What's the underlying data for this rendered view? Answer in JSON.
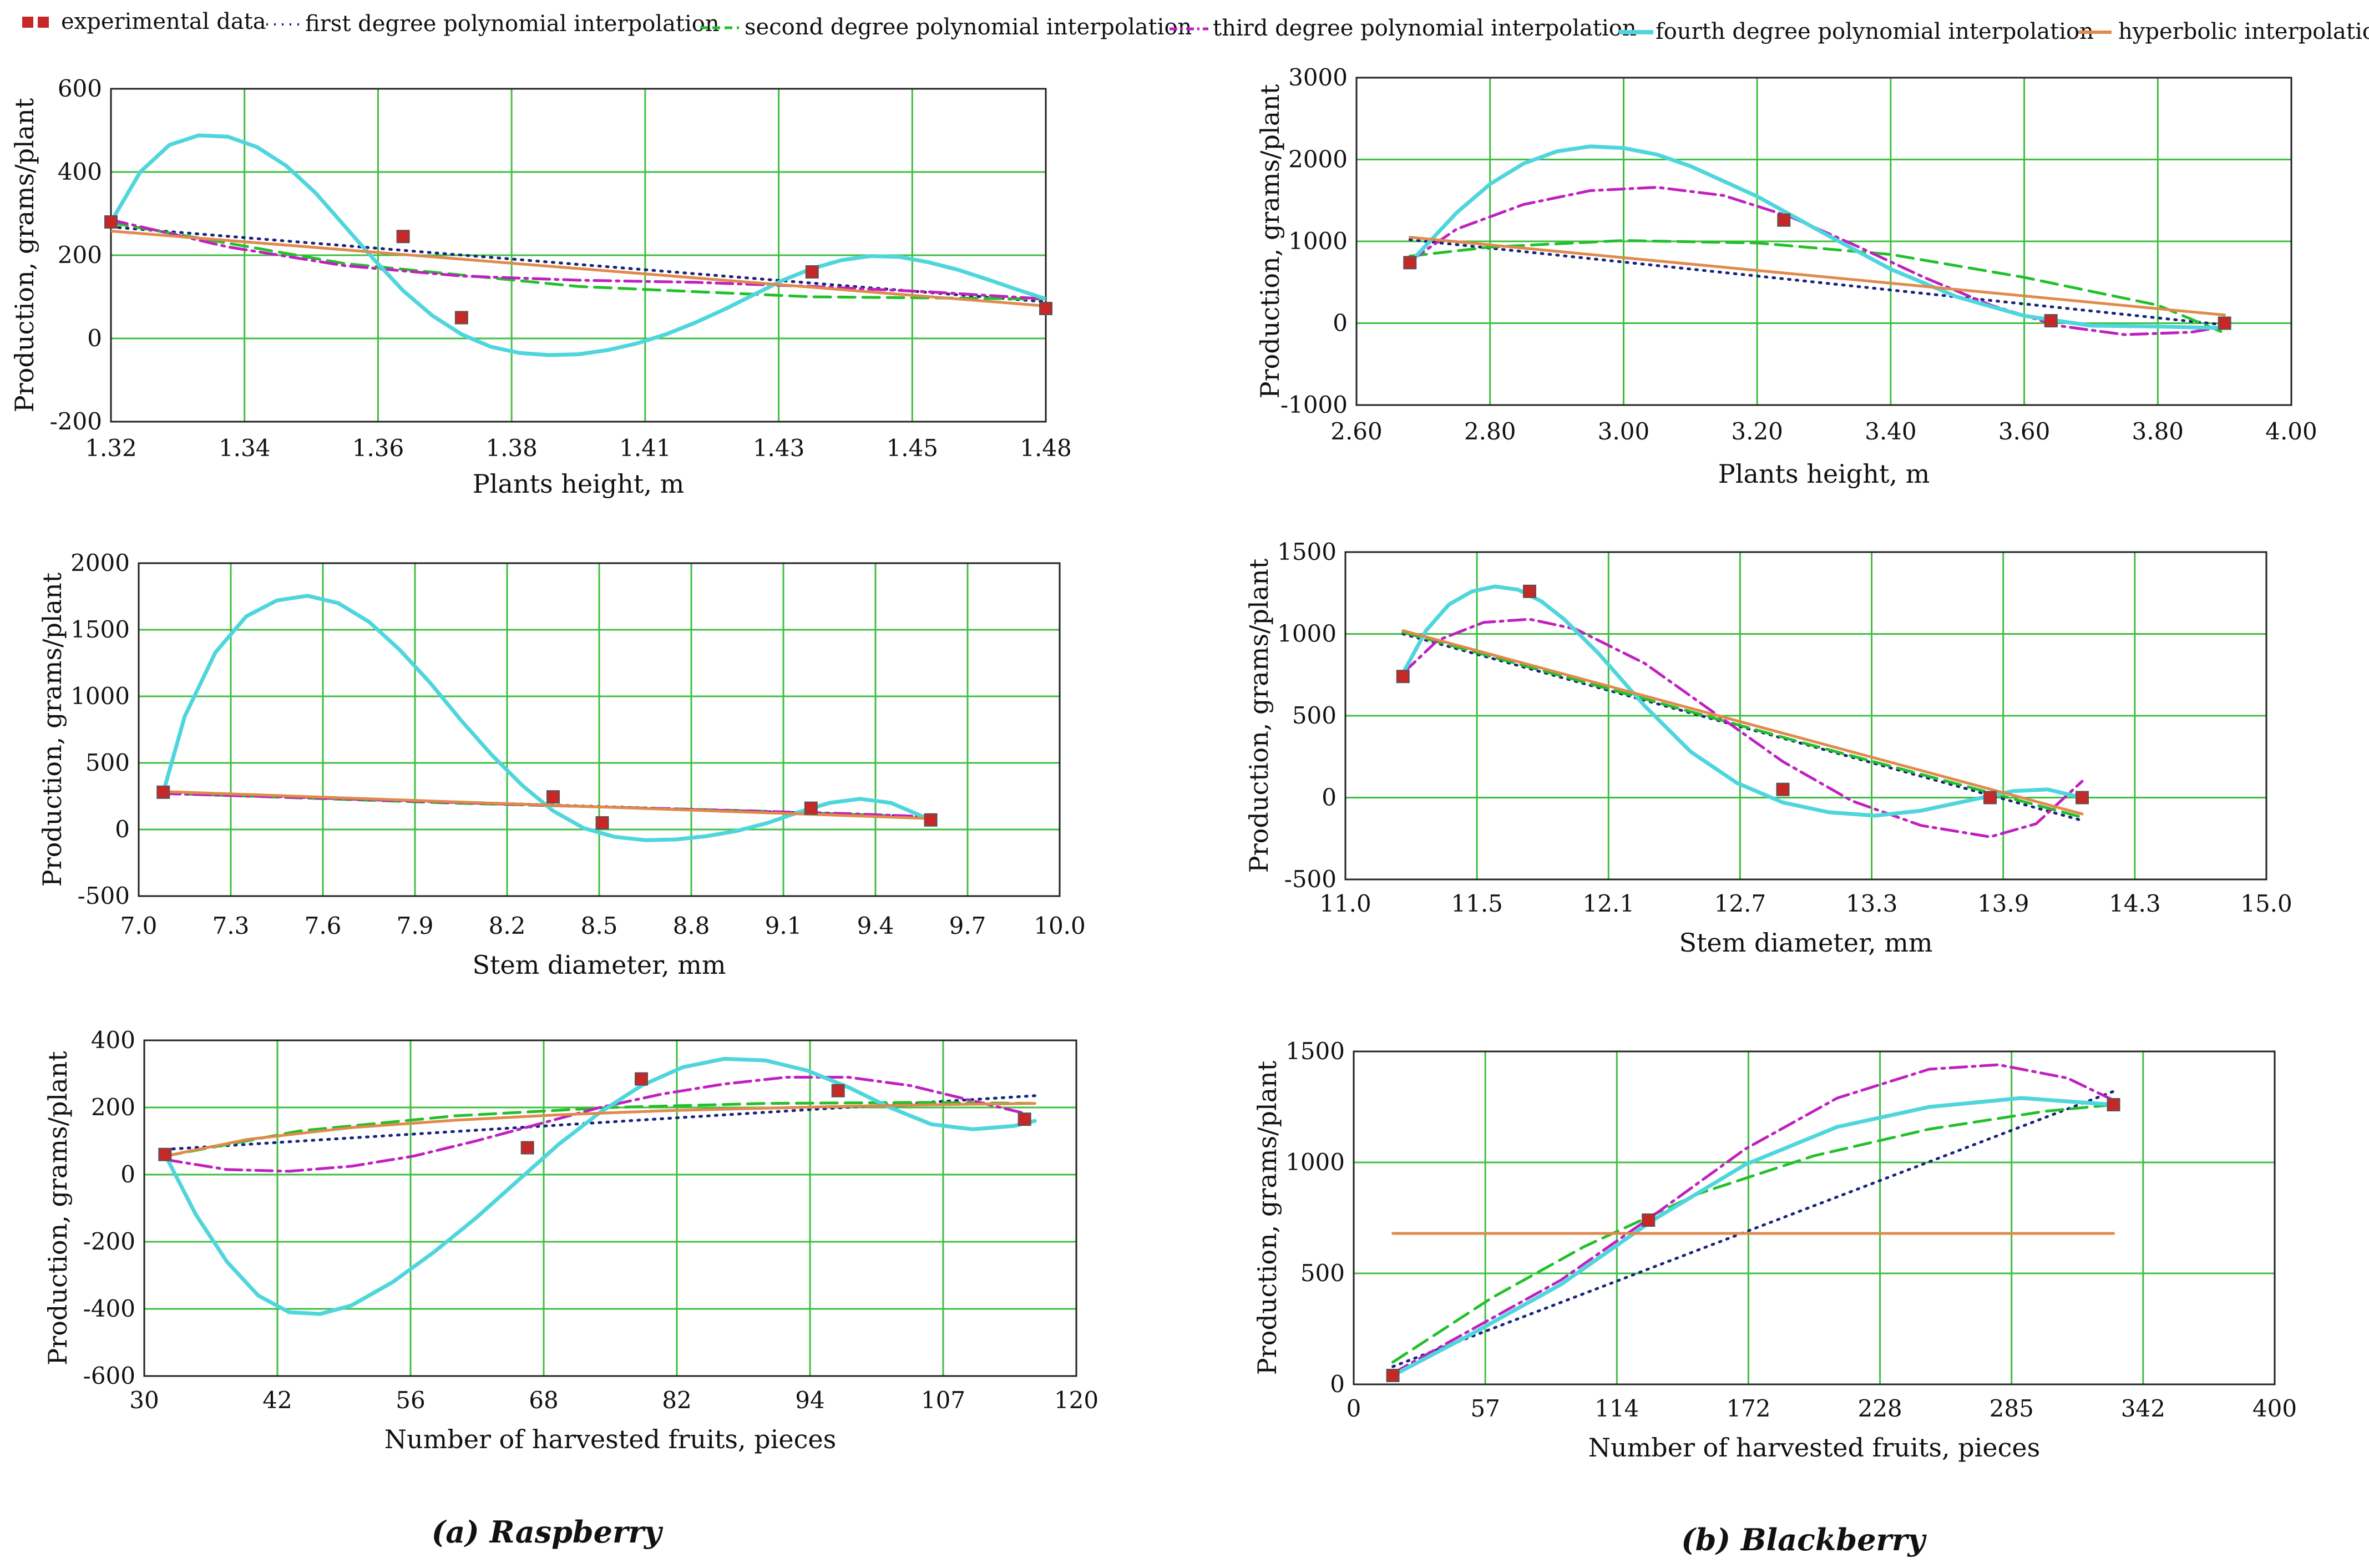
{
  "legend": {
    "experimental": "experimental data",
    "first": "first degree polynomial interpolation",
    "second": "second degree polynomial interpolation",
    "third": "third degree polynomial interpolation",
    "fourth": "fourth degree polynomial interpolation",
    "hyperbolic": "hyperbolic interpolation"
  },
  "styles": {
    "experimental": {
      "color": "#c62828"
    },
    "first": {
      "color": "#1a237e",
      "dash": "3,11"
    },
    "second": {
      "color": "#22c02a",
      "dash": "30,14"
    },
    "third": {
      "color": "#c020c0",
      "dash": "30,10,5,10"
    },
    "fourth": {
      "color": "#4fd6dc",
      "dash": ""
    },
    "hyperbolic": {
      "color": "#e08a4c",
      "dash": ""
    },
    "grid": "#3fbf3f"
  },
  "captions": {
    "a": "(a) Raspberry",
    "b": "(b) Blackberry"
  },
  "chart_data": [
    {
      "id": "ra1",
      "type": "line",
      "xlabel": "Plants height, m",
      "ylabel": "Production, grams/plant",
      "xlim": [
        1.32,
        1.48
      ],
      "ylim": [
        -200,
        600
      ],
      "xticks": [
        "1.32",
        "1.34",
        "1.36",
        "1.38",
        "1.41",
        "1.43",
        "1.45",
        "1.48"
      ],
      "yticks": [
        "600",
        "400",
        "200",
        "0",
        "-200"
      ],
      "experimental": [
        [
          1.32,
          280
        ],
        [
          1.37,
          245
        ],
        [
          1.38,
          50
        ],
        [
          1.44,
          160
        ],
        [
          1.48,
          72
        ]
      ],
      "series": [
        {
          "key": "first",
          "x": [
            1.32,
            1.48
          ],
          "y": [
            268,
            88
          ]
        },
        {
          "key": "second",
          "x": [
            1.32,
            1.36,
            1.4,
            1.44,
            1.48
          ],
          "y": [
            278,
            180,
            125,
            100,
            95
          ]
        },
        {
          "key": "third",
          "x": [
            1.32,
            1.34,
            1.36,
            1.38,
            1.4,
            1.42,
            1.44,
            1.46,
            1.48
          ],
          "y": [
            285,
            220,
            175,
            150,
            140,
            135,
            125,
            112,
            95
          ]
        },
        {
          "key": "fourth",
          "x": [
            1.32,
            1.325,
            1.33,
            1.335,
            1.34,
            1.345,
            1.35,
            1.355,
            1.36,
            1.365,
            1.37,
            1.375,
            1.38,
            1.385,
            1.39,
            1.395,
            1.4,
            1.405,
            1.41,
            1.415,
            1.42,
            1.425,
            1.43,
            1.435,
            1.44,
            1.445,
            1.45,
            1.455,
            1.46,
            1.465,
            1.47,
            1.475,
            1.48
          ],
          "y": [
            280,
            400,
            465,
            488,
            485,
            460,
            415,
            350,
            270,
            190,
            115,
            55,
            10,
            -20,
            -35,
            -40,
            -38,
            -28,
            -12,
            10,
            38,
            70,
            105,
            140,
            168,
            188,
            198,
            196,
            183,
            165,
            142,
            118,
            95
          ]
        },
        {
          "key": "hyperbolic",
          "x": [
            1.32,
            1.48
          ],
          "y": [
            258,
            78
          ]
        }
      ]
    },
    {
      "id": "rb1",
      "type": "line",
      "xlabel": "Plants height, m",
      "ylabel": "Production, grams/plant",
      "xlim": [
        2.6,
        4.0
      ],
      "ylim": [
        -1000,
        3000
      ],
      "xticks": [
        "2.60",
        "2.80",
        "3.00",
        "3.20",
        "3.40",
        "3.60",
        "3.80",
        "4.00"
      ],
      "yticks": [
        "3000",
        "2000",
        "1000",
        "0",
        "-1000"
      ],
      "experimental": [
        [
          2.68,
          740
        ],
        [
          3.24,
          1260
        ],
        [
          3.64,
          30
        ],
        [
          3.9,
          0
        ]
      ],
      "series": [
        {
          "key": "first",
          "x": [
            2.68,
            3.9
          ],
          "y": [
            1020,
            -20
          ]
        },
        {
          "key": "second",
          "x": [
            2.68,
            2.8,
            3.0,
            3.2,
            3.4,
            3.6,
            3.8,
            3.9
          ],
          "y": [
            820,
            930,
            1010,
            980,
            840,
            560,
            220,
            -120
          ]
        },
        {
          "key": "third",
          "x": [
            2.68,
            2.75,
            2.85,
            2.95,
            3.05,
            3.15,
            3.25,
            3.35,
            3.45,
            3.55,
            3.65,
            3.75,
            3.85,
            3.9
          ],
          "y": [
            760,
            1150,
            1450,
            1620,
            1660,
            1560,
            1300,
            940,
            560,
            220,
            -30,
            -140,
            -110,
            -40
          ]
        },
        {
          "key": "fourth",
          "x": [
            2.68,
            2.75,
            2.8,
            2.85,
            2.9,
            2.95,
            3.0,
            3.05,
            3.1,
            3.2,
            3.3,
            3.4,
            3.5,
            3.6,
            3.7,
            3.8,
            3.9
          ],
          "y": [
            740,
            1350,
            1700,
            1950,
            2100,
            2160,
            2140,
            2060,
            1920,
            1550,
            1100,
            660,
            320,
            90,
            -30,
            -40,
            -60
          ]
        },
        {
          "key": "hyperbolic",
          "x": [
            2.68,
            3.9
          ],
          "y": [
            1050,
            100
          ]
        }
      ]
    },
    {
      "id": "ra2",
      "type": "line",
      "xlabel": "Stem diameter, mm",
      "ylabel": "Production, grams/plant",
      "xlim": [
        7.0,
        10.0
      ],
      "ylim": [
        -500,
        2000
      ],
      "xticks": [
        "7.0",
        "7.3",
        "7.6",
        "7.9",
        "8.2",
        "8.5",
        "8.8",
        "9.1",
        "9.4",
        "9.7",
        "10.0"
      ],
      "yticks": [
        "2000",
        "1500",
        "1000",
        "500",
        "0",
        "-500"
      ],
      "experimental": [
        [
          7.08,
          280
        ],
        [
          8.35,
          245
        ],
        [
          8.51,
          50
        ],
        [
          9.19,
          160
        ],
        [
          9.58,
          72
        ]
      ],
      "series": [
        {
          "key": "first",
          "x": [
            7.08,
            9.58
          ],
          "y": [
            275,
            95
          ]
        },
        {
          "key": "second",
          "x": [
            7.08,
            8.0,
            9.0,
            9.58
          ],
          "y": [
            272,
            200,
            140,
            92
          ]
        },
        {
          "key": "third",
          "x": [
            7.08,
            7.6,
            8.2,
            8.8,
            9.3,
            9.58
          ],
          "y": [
            270,
            235,
            190,
            150,
            120,
            95
          ]
        },
        {
          "key": "fourth",
          "x": [
            7.08,
            7.15,
            7.25,
            7.35,
            7.45,
            7.55,
            7.65,
            7.75,
            7.85,
            7.95,
            8.05,
            8.15,
            8.25,
            8.35,
            8.45,
            8.55,
            8.65,
            8.75,
            8.85,
            8.95,
            9.05,
            9.15,
            9.25,
            9.35,
            9.45,
            9.58
          ],
          "y": [
            280,
            850,
            1330,
            1600,
            1720,
            1755,
            1700,
            1560,
            1350,
            1100,
            820,
            560,
            330,
            140,
            10,
            -55,
            -80,
            -75,
            -50,
            -10,
            50,
            130,
            200,
            230,
            200,
            72
          ]
        },
        {
          "key": "hyperbolic",
          "x": [
            7.08,
            9.58
          ],
          "y": [
            285,
            82
          ]
        }
      ]
    },
    {
      "id": "rb2",
      "type": "line",
      "xlabel": "Stem diameter, mm",
      "ylabel": "Production, grams/plant",
      "xlim": [
        11.0,
        15.0
      ],
      "ylim": [
        -500,
        1500
      ],
      "xticks": [
        "11.0",
        "11.5",
        "12.1",
        "12.7",
        "13.3",
        "13.9",
        "14.3",
        "15.0"
      ],
      "yticks": [
        "1500",
        "1000",
        "500",
        "0",
        "-500"
      ],
      "experimental": [
        [
          11.25,
          740
        ],
        [
          11.8,
          1260
        ],
        [
          12.9,
          50
        ],
        [
          13.8,
          0
        ],
        [
          14.2,
          0
        ]
      ],
      "series": [
        {
          "key": "first",
          "x": [
            11.25,
            14.2
          ],
          "y": [
            1000,
            -140
          ]
        },
        {
          "key": "second",
          "x": [
            11.25,
            12.0,
            13.0,
            14.2
          ],
          "y": [
            1010,
            720,
            330,
            -120
          ]
        },
        {
          "key": "third",
          "x": [
            11.25,
            11.4,
            11.6,
            11.8,
            12.0,
            12.3,
            12.6,
            12.9,
            13.2,
            13.5,
            13.8,
            14.0,
            14.2
          ],
          "y": [
            760,
            960,
            1070,
            1090,
            1030,
            820,
            520,
            220,
            -20,
            -170,
            -240,
            -160,
            100
          ]
        },
        {
          "key": "fourth",
          "x": [
            11.25,
            11.35,
            11.45,
            11.55,
            11.65,
            11.75,
            11.85,
            11.95,
            12.1,
            12.3,
            12.5,
            12.7,
            12.9,
            13.1,
            13.3,
            13.5,
            13.7,
            13.9,
            14.05,
            14.2
          ],
          "y": [
            760,
            1020,
            1180,
            1260,
            1290,
            1270,
            1200,
            1090,
            880,
            560,
            280,
            90,
            -30,
            -90,
            -110,
            -80,
            -20,
            40,
            50,
            0
          ]
        },
        {
          "key": "hyperbolic",
          "x": [
            11.25,
            14.2
          ],
          "y": [
            1020,
            -100
          ]
        }
      ]
    },
    {
      "id": "ra3",
      "type": "line",
      "xlabel": "Number of harvested fruits, pieces",
      "ylabel": "Production, grams/plant",
      "xlim": [
        30,
        120
      ],
      "ylim": [
        -600,
        400
      ],
      "xticks": [
        "30",
        "42",
        "56",
        "68",
        "82",
        "94",
        "107",
        "120"
      ],
      "yticks": [
        "400",
        "200",
        "0",
        "-200",
        "-400",
        "-600"
      ],
      "experimental": [
        [
          32,
          60
        ],
        [
          67,
          80
        ],
        [
          78,
          285
        ],
        [
          97,
          250
        ],
        [
          115,
          165
        ]
      ],
      "series": [
        {
          "key": "first",
          "x": [
            32,
            116
          ],
          "y": [
            75,
            235
          ]
        },
        {
          "key": "second",
          "x": [
            32,
            45,
            60,
            75,
            90,
            105,
            116
          ],
          "y": [
            55,
            130,
            175,
            200,
            212,
            215,
            212
          ]
        },
        {
          "key": "third",
          "x": [
            32,
            38,
            44,
            50,
            56,
            62,
            68,
            74,
            80,
            86,
            92,
            98,
            104,
            110,
            116
          ],
          "y": [
            45,
            15,
            10,
            25,
            55,
            100,
            150,
            200,
            240,
            270,
            290,
            290,
            265,
            220,
            175
          ]
        },
        {
          "key": "fourth",
          "x": [
            32,
            35,
            38,
            41,
            44,
            47,
            50,
            54,
            58,
            62,
            66,
            70,
            74,
            78,
            82,
            86,
            90,
            94,
            98,
            102,
            106,
            110,
            114,
            116
          ],
          "y": [
            60,
            -120,
            -260,
            -360,
            -410,
            -415,
            -390,
            -320,
            -230,
            -130,
            -20,
            90,
            185,
            265,
            320,
            345,
            340,
            310,
            260,
            200,
            150,
            135,
            145,
            160
          ]
        },
        {
          "key": "hyperbolic",
          "x": [
            32,
            40,
            50,
            60,
            70,
            80,
            90,
            100,
            110,
            116
          ],
          "y": [
            55,
            105,
            140,
            162,
            178,
            190,
            198,
            205,
            210,
            212
          ]
        }
      ]
    },
    {
      "id": "rb3",
      "type": "line",
      "xlabel": "Number of harvested fruits, pieces",
      "ylabel": "Production, grams/plant",
      "xlim": [
        0,
        400
      ],
      "ylim": [
        0,
        1500
      ],
      "xticks": [
        "0",
        "57",
        "114",
        "172",
        "228",
        "285",
        "342",
        "400"
      ],
      "yticks": [
        "1500",
        "1000",
        "500",
        "0"
      ],
      "experimental": [
        [
          17,
          40
        ],
        [
          128,
          740
        ],
        [
          330,
          1260
        ]
      ],
      "series": [
        {
          "key": "first",
          "x": [
            17,
            330
          ],
          "y": [
            80,
            1320
          ]
        },
        {
          "key": "second",
          "x": [
            17,
            60,
            100,
            150,
            200,
            250,
            300,
            330
          ],
          "y": [
            100,
            390,
            620,
            860,
            1030,
            1150,
            1230,
            1260
          ]
        },
        {
          "key": "third",
          "x": [
            17,
            50,
            90,
            130,
            170,
            210,
            250,
            280,
            310,
            330
          ],
          "y": [
            50,
            240,
            470,
            760,
            1060,
            1290,
            1420,
            1440,
            1380,
            1280
          ]
        },
        {
          "key": "fourth",
          "x": [
            17,
            50,
            90,
            130,
            170,
            210,
            250,
            290,
            330
          ],
          "y": [
            40,
            220,
            450,
            740,
            990,
            1160,
            1250,
            1290,
            1260
          ]
        },
        {
          "key": "hyperbolic",
          "x": [
            17,
            330
          ],
          "y": [
            680,
            680
          ]
        }
      ]
    }
  ]
}
